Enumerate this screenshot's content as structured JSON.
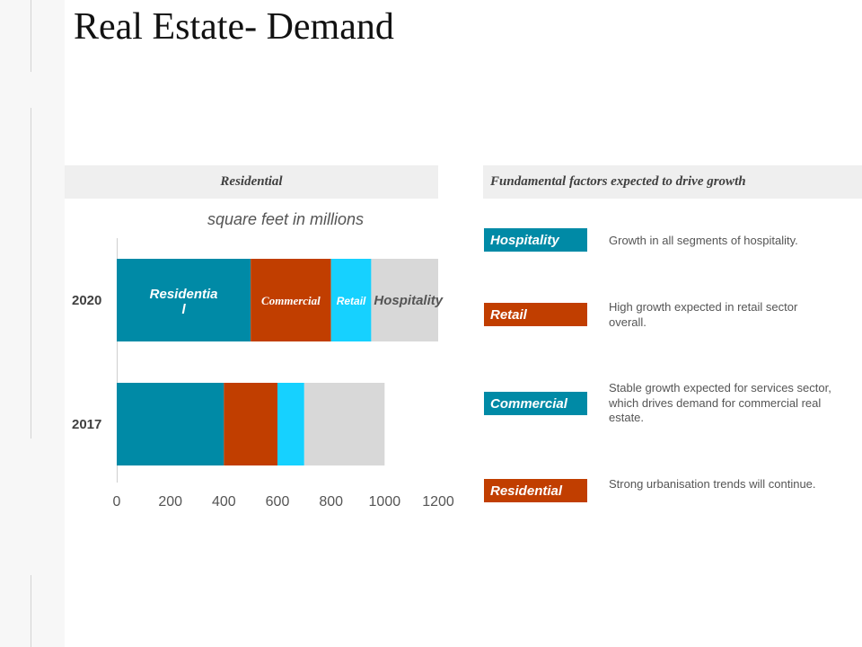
{
  "title": "Real Estate- Demand",
  "left_header": "Residential",
  "right_header": "Fundamental factors expected to drive growth",
  "chart_data": {
    "type": "bar",
    "orientation": "horizontal",
    "stacked": true,
    "subtitle": "square feet in millions",
    "categories": [
      "2020",
      "2017"
    ],
    "series": [
      {
        "name": "Residentia l",
        "values": [
          500,
          400
        ],
        "color": "#008aa6",
        "label_color": "#ffffff",
        "label_style": "bold-italic"
      },
      {
        "name": "Commercial",
        "values": [
          300,
          200
        ],
        "color": "#c13e00",
        "label_color": "#ffffff",
        "label_style": "bold-italic-serif"
      },
      {
        "name": "Retail",
        "values": [
          150,
          100
        ],
        "color": "#16d1ff",
        "label_color": "#ffffff",
        "label_style": "bold-italic"
      },
      {
        "name": "Hospitality",
        "values": [
          250,
          300
        ],
        "color": "#d8d8d8",
        "label_color": "#555555",
        "label_style": "bold-italic"
      }
    ],
    "inline_labels_on": "2020",
    "xlim": [
      0,
      1200
    ],
    "xticks": [
      0,
      200,
      400,
      600,
      800,
      1000,
      1200
    ],
    "grid": false
  },
  "factors": [
    {
      "label": "Hospitality",
      "color": "#008aa6",
      "text": "Growth in all segments of hospitality."
    },
    {
      "label": "Retail",
      "color": "#c13e00",
      "text": "High growth expected in retail sector overall."
    },
    {
      "label": "Commercial",
      "color": "#008aa6",
      "text": "Stable growth expected for services sector, which drives demand for commercial real estate."
    },
    {
      "label": "Residential",
      "color": "#c13e00",
      "text": "Strong urbanisation trends will continue."
    }
  ]
}
